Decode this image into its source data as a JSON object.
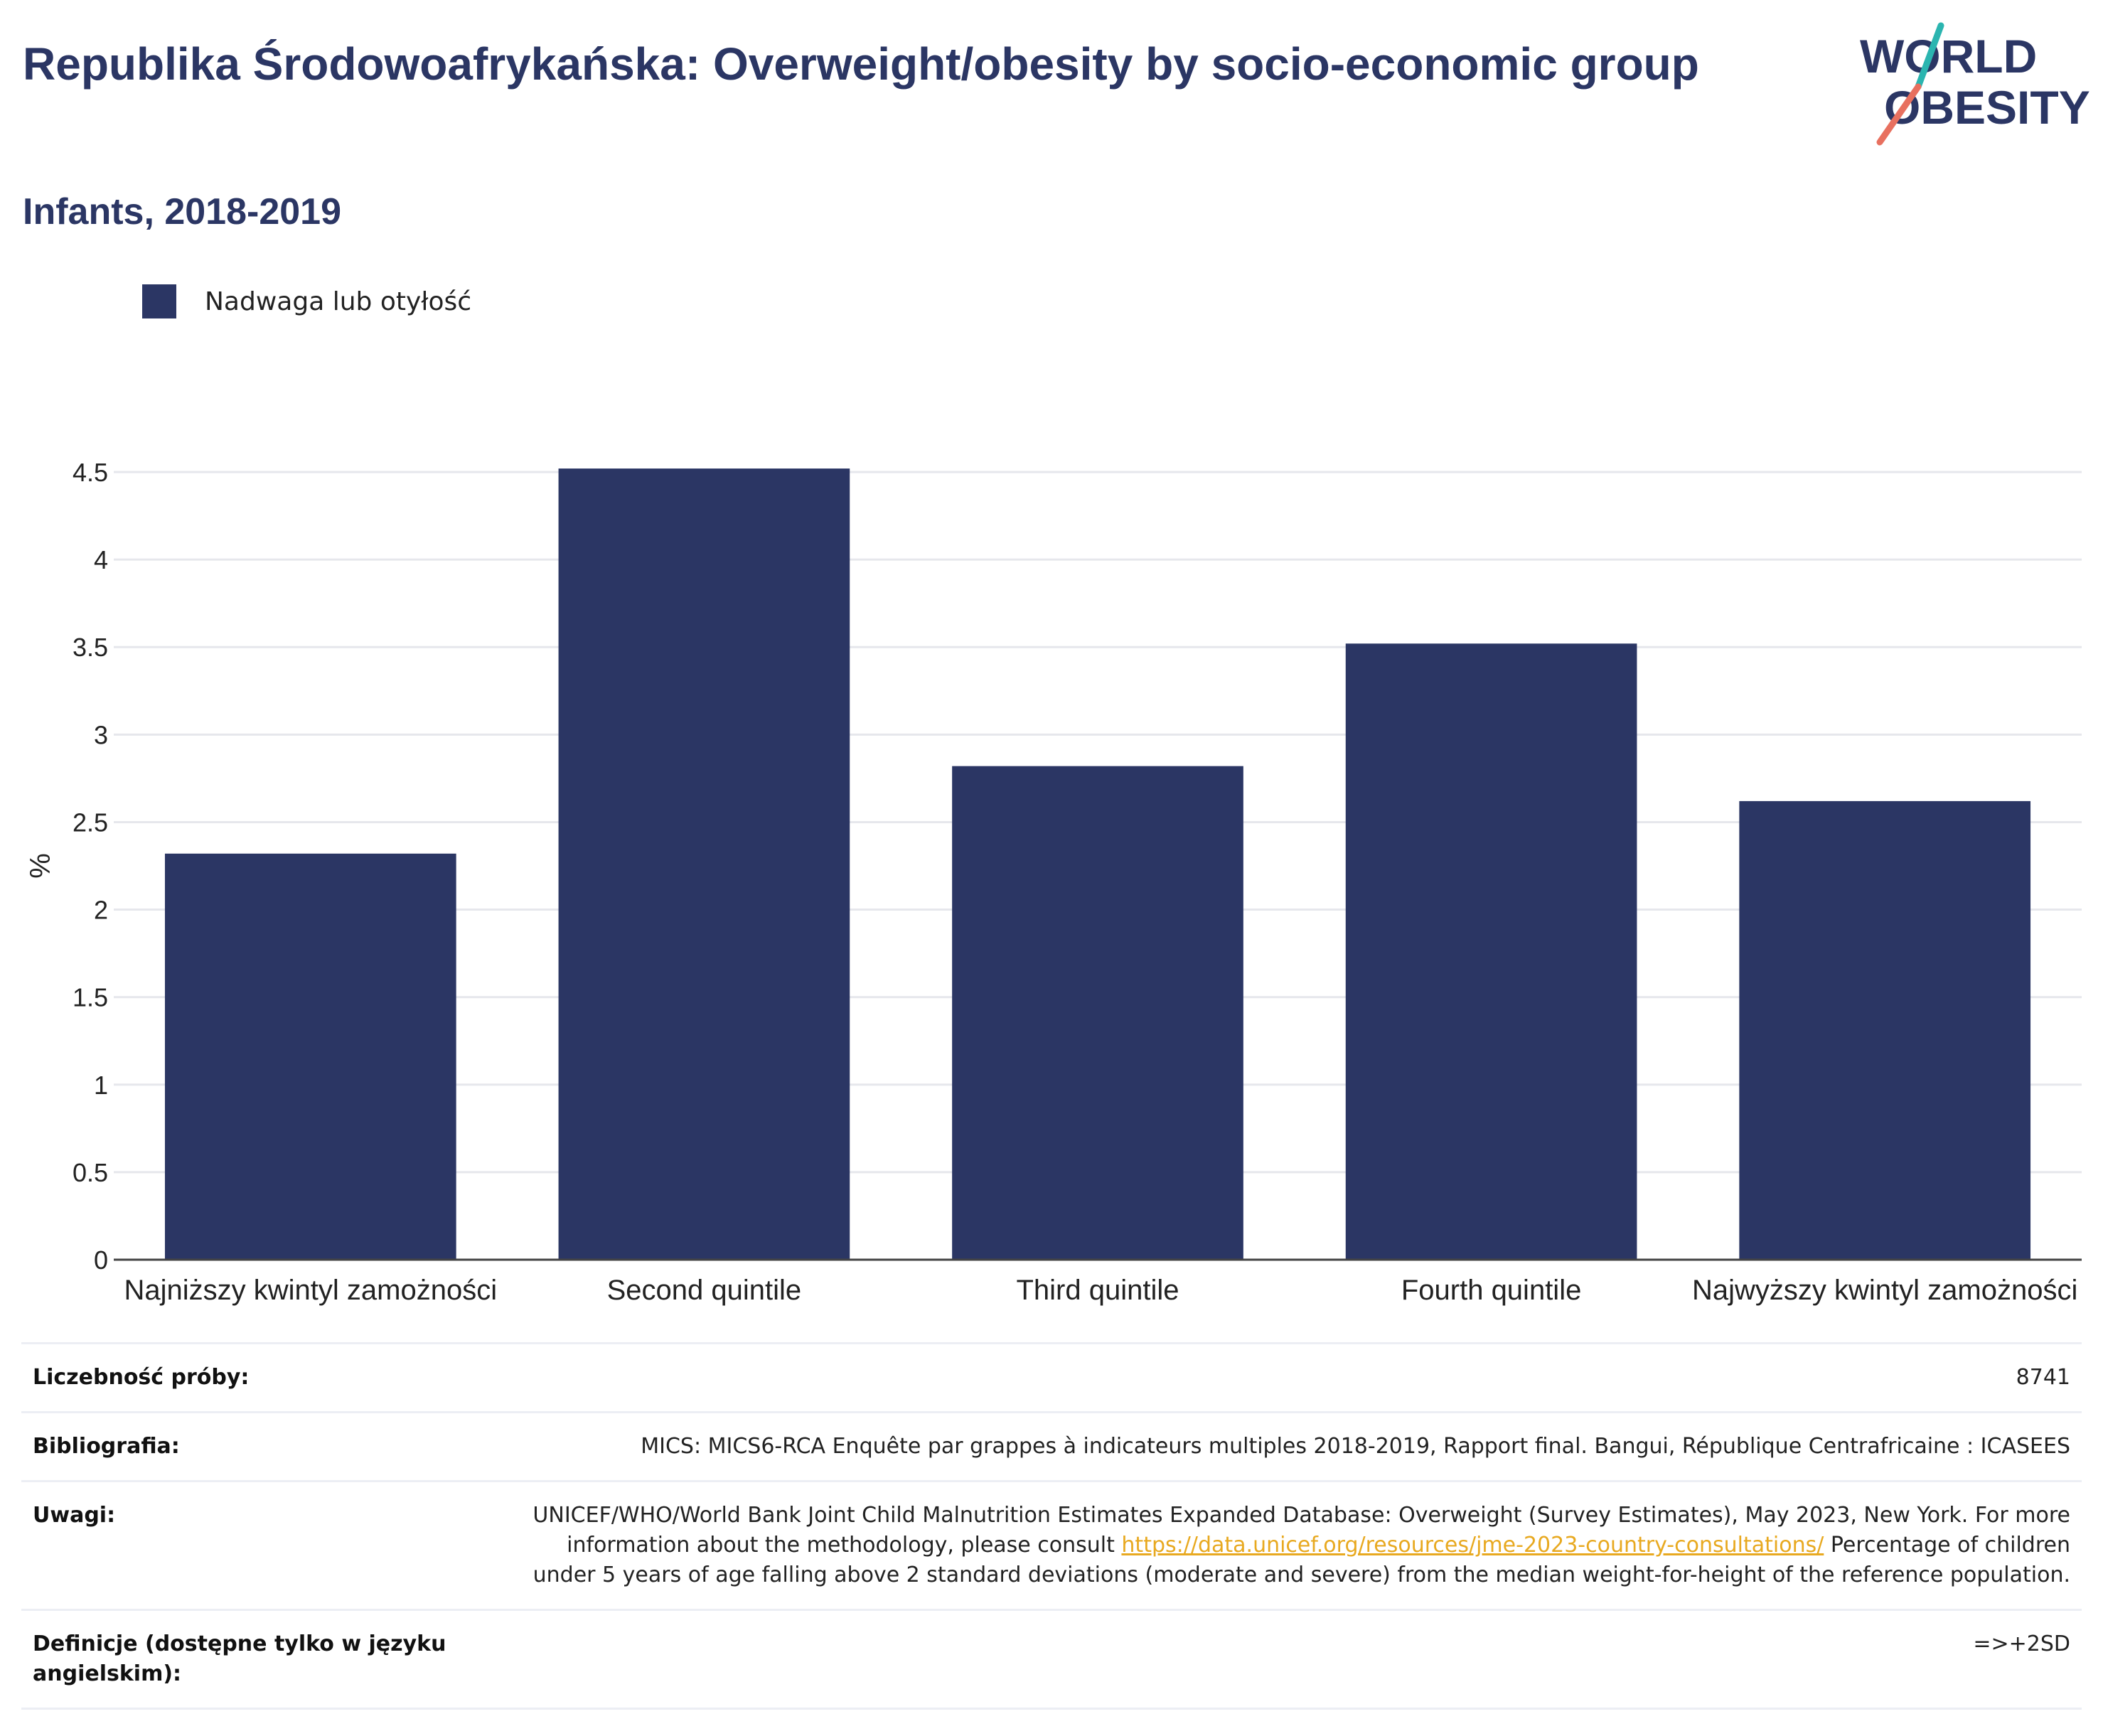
{
  "header": {
    "title": "Republika Środowoafrykańska: Overweight/obesity by socio-economic group",
    "subtitle": "Infants, 2018-2019"
  },
  "logo": {
    "line1": "WORLD",
    "line2": "OBESITY",
    "colors": {
      "text": "#2b3664",
      "slash_teal": "#2bb5b0",
      "slash_coral": "#e8705f"
    }
  },
  "legend": {
    "label": "Nadwaga lub otyłość"
  },
  "chart_data": {
    "type": "bar",
    "categories": [
      "Najniższy kwintyl zamożności",
      "Second quintile",
      "Third quintile",
      "Fourth quintile",
      "Najwyższy kwintyl zamożności"
    ],
    "series": [
      {
        "name": "Nadwaga lub otyłość",
        "values": [
          2.32,
          4.52,
          2.82,
          3.52,
          2.62
        ],
        "color": "#2b3664"
      }
    ],
    "ylabel": "%",
    "ylim": [
      0,
      4.5
    ],
    "yticks": [
      "0",
      "0.5",
      "1",
      "1.5",
      "2",
      "2.5",
      "3",
      "3.5",
      "4",
      "4.5"
    ],
    "grid": true
  },
  "info": {
    "sample_label": "Liczebność próby:",
    "sample_value": "8741",
    "bib_label": "Bibliografia:",
    "bib_value": "MICS: MICS6-RCA Enquête par grappes à indicateurs multiples 2018-2019, Rapport final. Bangui, République Centrafricaine : ICASEES",
    "notes_label": "Uwagi:",
    "notes_text1": "UNICEF/WHO/World Bank Joint Child Malnutrition Estimates Expanded Database: Overweight (Survey Estimates), May 2023, New York. For more information about the methodology, please consult ",
    "notes_link": "https://data.unicef.org/resources/jme-2023-country-consultations/",
    "notes_text2": "Percentage of children under 5 years of age falling above 2 standard deviations (moderate and severe) from the median weight-for-height of the reference population.",
    "def_label": "Definicje (dostępne tylko w języku angielskim):",
    "def_value": "=>+2SD"
  }
}
